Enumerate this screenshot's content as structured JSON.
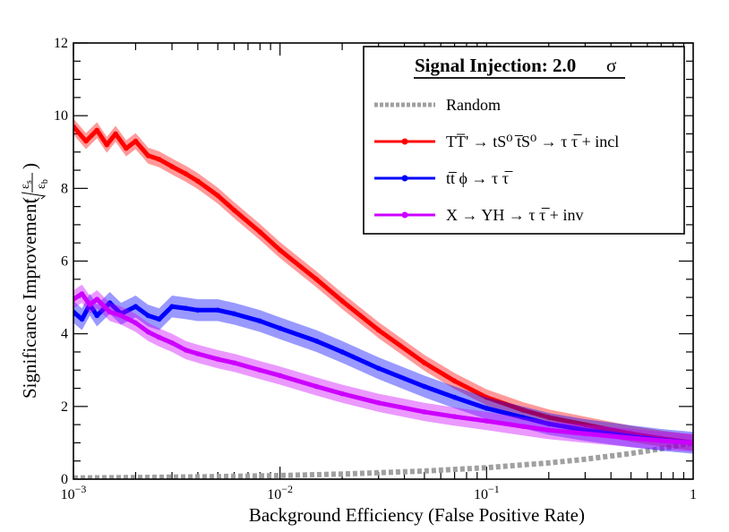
{
  "chart_data": {
    "type": "line",
    "title": "",
    "xlabel": "Background Efficiency (False Positive Rate)",
    "ylabel": "Significance Improvement",
    "ylabel_fraction": {
      "numerator": "ε",
      "numerator_sub": "s",
      "denominator": "ε",
      "denominator_sub": "b"
    },
    "xscale": "log",
    "xlim": [
      0.001,
      1
    ],
    "ylim": [
      0,
      12
    ],
    "x_ticks": [
      {
        "value": 0.001,
        "base": "10",
        "exp": "−3"
      },
      {
        "value": 0.01,
        "base": "10",
        "exp": "−2"
      },
      {
        "value": 0.1,
        "base": "10",
        "exp": "−1"
      },
      {
        "value": 1,
        "base": "1",
        "exp": ""
      }
    ],
    "y_ticks": [
      0,
      2,
      4,
      6,
      8,
      10,
      12
    ],
    "y_tick_labels": [
      "0",
      "2",
      "4",
      "6",
      "8",
      "10",
      "12"
    ],
    "legend": {
      "placement": "top-right",
      "title": "Signal Injection: 2.0",
      "title_symbol": "σ",
      "entries": [
        {
          "label": "Random",
          "color": "#a0a0a0",
          "style": "dotted"
        },
        {
          "label": "TT̅' → tS⁰ t̅S⁰ → τ τ̅ + incl",
          "color": "#ff0000",
          "style": "solid-marker"
        },
        {
          "label": "tt̅ ϕ → τ τ̅",
          "color": "#0000ff",
          "style": "solid-marker"
        },
        {
          "label": "X → YH → τ τ̅ + inv",
          "color": "#cc00ff",
          "style": "solid-marker"
        }
      ]
    },
    "series": [
      {
        "name": "Random",
        "color": "#a0a0a0",
        "dashed": true,
        "band": 0,
        "x": [
          0.001,
          0.002,
          0.005,
          0.01,
          0.02,
          0.05,
          0.1,
          0.2,
          0.3,
          0.5,
          0.7,
          1.0
        ],
        "y": [
          0.0316,
          0.0447,
          0.0707,
          0.1,
          0.1414,
          0.2236,
          0.3162,
          0.4472,
          0.5477,
          0.7071,
          0.8367,
          1.0
        ]
      },
      {
        "name": "TT̅' → tS⁰ t̅S⁰ → τ τ̅ + incl",
        "color": "#ff0000",
        "band": 0.22,
        "x": [
          0.001,
          0.00115,
          0.0013,
          0.00145,
          0.0016,
          0.0018,
          0.002,
          0.0023,
          0.0026,
          0.003,
          0.0035,
          0.004,
          0.005,
          0.006,
          0.008,
          0.01,
          0.015,
          0.02,
          0.03,
          0.05,
          0.07,
          0.1,
          0.15,
          0.2,
          0.3,
          0.5,
          0.7,
          1.0
        ],
        "y": [
          9.7,
          9.3,
          9.6,
          9.2,
          9.5,
          9.1,
          9.3,
          8.9,
          8.8,
          8.6,
          8.4,
          8.2,
          7.8,
          7.4,
          6.8,
          6.3,
          5.5,
          4.9,
          4.1,
          3.2,
          2.7,
          2.25,
          1.9,
          1.7,
          1.5,
          1.25,
          1.12,
          1.0
        ]
      },
      {
        "name": "tt̅ ϕ → τ τ̅",
        "color": "#0000ff",
        "band": 0.3,
        "x": [
          0.001,
          0.0011,
          0.0012,
          0.0013,
          0.0015,
          0.0017,
          0.002,
          0.0023,
          0.0026,
          0.003,
          0.0035,
          0.004,
          0.005,
          0.006,
          0.008,
          0.01,
          0.015,
          0.02,
          0.03,
          0.05,
          0.07,
          0.1,
          0.15,
          0.2,
          0.3,
          0.5,
          0.7,
          1.0
        ],
        "y": [
          4.6,
          4.4,
          4.8,
          4.5,
          4.85,
          4.55,
          4.75,
          4.5,
          4.4,
          4.75,
          4.7,
          4.65,
          4.65,
          4.55,
          4.35,
          4.15,
          3.8,
          3.5,
          3.05,
          2.55,
          2.25,
          1.95,
          1.7,
          1.52,
          1.35,
          1.18,
          1.08,
          1.0
        ]
      },
      {
        "name": "X → YH → τ τ̅ + inv",
        "color": "#cc00ff",
        "band": 0.25,
        "x": [
          0.001,
          0.0011,
          0.0012,
          0.0013,
          0.0015,
          0.0017,
          0.002,
          0.0023,
          0.0026,
          0.003,
          0.0035,
          0.004,
          0.005,
          0.006,
          0.008,
          0.01,
          0.015,
          0.02,
          0.03,
          0.05,
          0.07,
          0.1,
          0.15,
          0.2,
          0.3,
          0.5,
          0.7,
          1.0
        ],
        "y": [
          4.95,
          5.1,
          4.8,
          4.95,
          4.6,
          4.5,
          4.3,
          4.05,
          3.9,
          3.75,
          3.55,
          3.45,
          3.3,
          3.2,
          3.0,
          2.85,
          2.55,
          2.35,
          2.1,
          1.85,
          1.72,
          1.6,
          1.45,
          1.35,
          1.25,
          1.13,
          1.06,
          1.0
        ]
      }
    ]
  }
}
